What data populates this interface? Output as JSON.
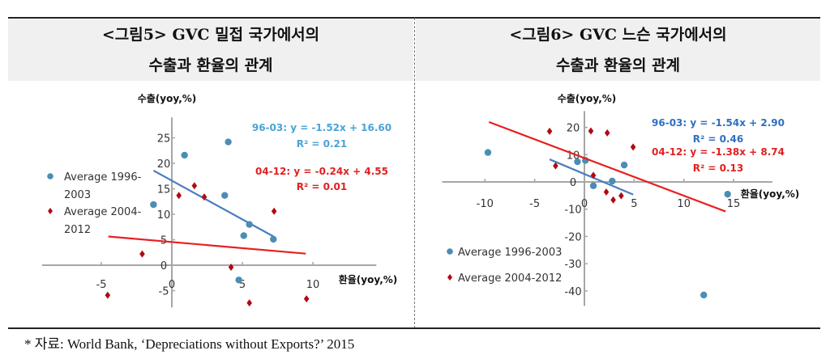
{
  "panels": [
    {
      "title_line1": "<그림5> GVC 밀접 국가에서의",
      "title_line2": "수출과 환율의 관계"
    },
    {
      "title_line1": "<그림6> GVC 느슨 국가에서의",
      "title_line2": "수출과 환율의 관계"
    }
  ],
  "footnote": "*  자료: World Bank, ‘Depreciations without Exports?’ 2015",
  "colors": {
    "series1": "#4a8db5",
    "series2": "#b00a12",
    "fit1": "#4a7cc0",
    "fit2": "#e8201f"
  },
  "chart_data": [
    {
      "type": "scatter",
      "xlabel": "환율(yoy,%)",
      "ylabel": "수출(yoy,%)",
      "xticks": [
        -5,
        0,
        5,
        10
      ],
      "yticks": [
        -5,
        0,
        5,
        10,
        15,
        20,
        25
      ],
      "xlim": [
        -9.2,
        14.5
      ],
      "ylim": [
        -8.3,
        29
      ],
      "legend_placement": "left",
      "series": [
        {
          "name": "Average 1996-2003",
          "legend_line1": "Average 1996-",
          "legend_line2": "2003",
          "marker": "circle",
          "points": [
            [
              -1.3,
              11.9
            ],
            [
              0.9,
              21.6
            ],
            [
              4.0,
              24.2
            ],
            [
              3.75,
              13.7
            ],
            [
              5.5,
              8.0
            ],
            [
              5.1,
              5.8
            ],
            [
              7.2,
              5.1
            ],
            [
              4.75,
              -2.9
            ]
          ],
          "fit": {
            "slope": -1.52,
            "intercept": 16.6,
            "xrange": [
              -1.3,
              7.2
            ],
            "equation": "96-03: y = -1.52x + 16.60",
            "r2": "R² = 0.21"
          }
        },
        {
          "name": "Average 2004-2012",
          "legend_line1": "Average 2004-",
          "legend_line2": "2012",
          "marker": "diamond",
          "points": [
            [
              -4.55,
              -5.9
            ],
            [
              -2.1,
              2.2
            ],
            [
              0.5,
              13.7
            ],
            [
              1.6,
              15.6
            ],
            [
              2.3,
              13.4
            ],
            [
              4.2,
              -0.4
            ],
            [
              5.5,
              -7.4
            ],
            [
              7.25,
              10.6
            ],
            [
              9.55,
              -6.6
            ]
          ],
          "fit": {
            "slope": -0.24,
            "intercept": 4.55,
            "xrange": [
              -4.5,
              9.5
            ],
            "equation": "04-12: y = -0.24x + 4.55",
            "r2": "R² = 0.01"
          }
        }
      ]
    },
    {
      "type": "scatter",
      "xlabel": "환율(yoy,%)",
      "ylabel": "수출(yoy,%)",
      "xticks": [
        -10,
        -5,
        0,
        5,
        10,
        15
      ],
      "yticks": [
        -40,
        -30,
        -20,
        -10,
        0,
        10,
        20
      ],
      "xlim": [
        -14.3,
        18.9
      ],
      "ylim": [
        -45.5,
        26
      ],
      "legend_placement": "bottom-left",
      "series": [
        {
          "name": "Average 1996-2003",
          "marker": "circle",
          "points": [
            [
              -9.7,
              10.8
            ],
            [
              -0.7,
              7.4
            ],
            [
              0.1,
              7.9
            ],
            [
              0.9,
              -1.4
            ],
            [
              2.8,
              0.3
            ],
            [
              4.0,
              6.2
            ],
            [
              14.4,
              -4.5
            ],
            [
              12.0,
              -41.5
            ]
          ],
          "fit": {
            "slope": -1.54,
            "intercept": 2.9,
            "xrange": [
              -3.5,
              4.9
            ],
            "equation": "96-03: y = -1.54x + 2.90",
            "r2": "R² = 0.46"
          }
        },
        {
          "name": "Average 2004-2012",
          "marker": "diamond",
          "points": [
            [
              -3.5,
              18.6
            ],
            [
              -2.9,
              5.9
            ],
            [
              0.65,
              18.7
            ],
            [
              2.3,
              18.0
            ],
            [
              4.9,
              12.8
            ],
            [
              0.9,
              2.4
            ],
            [
              2.2,
              -3.7
            ],
            [
              2.9,
              -6.6
            ],
            [
              3.7,
              -5.1
            ]
          ],
          "fit": {
            "slope": -1.38,
            "intercept": 8.74,
            "xrange": [
              -9.6,
              14.2
            ],
            "equation": "04-12: y = -1.38x + 8.74",
            "r2": "R² = 0.13"
          }
        }
      ]
    }
  ]
}
